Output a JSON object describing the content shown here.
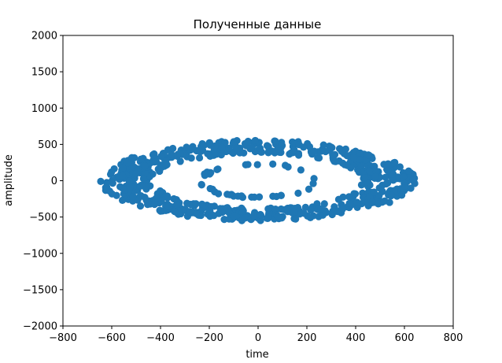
{
  "chart_data": {
    "type": "scatter",
    "title": "Полученные данные",
    "xlabel": "time",
    "ylabel": "amplitude",
    "xlim": [
      -800,
      800
    ],
    "ylim": [
      -2000,
      2000
    ],
    "xticks": [
      -800,
      -600,
      -400,
      -200,
      0,
      200,
      400,
      600,
      800
    ],
    "yticks": [
      -2000,
      -1500,
      -1000,
      -500,
      0,
      500,
      1000,
      1500,
      2000
    ],
    "xtick_labels": [
      "−800",
      "−600",
      "−400",
      "−200",
      "0",
      "200",
      "400",
      "600",
      "800"
    ],
    "ytick_labels": [
      "−2000",
      "−1500",
      "−1000",
      "−500",
      "0",
      "500",
      "1000",
      "1500",
      "2000"
    ],
    "grid": false,
    "marker_color": "#1f77b4",
    "series": [
      {
        "points_description_rings": [
          {
            "a": 230,
            "b": 230,
            "count": 40
          },
          {
            "a": 450,
            "b": 400,
            "count": 160
          },
          {
            "a": 650,
            "b": 560,
            "count": 500
          }
        ]
      }
    ]
  }
}
